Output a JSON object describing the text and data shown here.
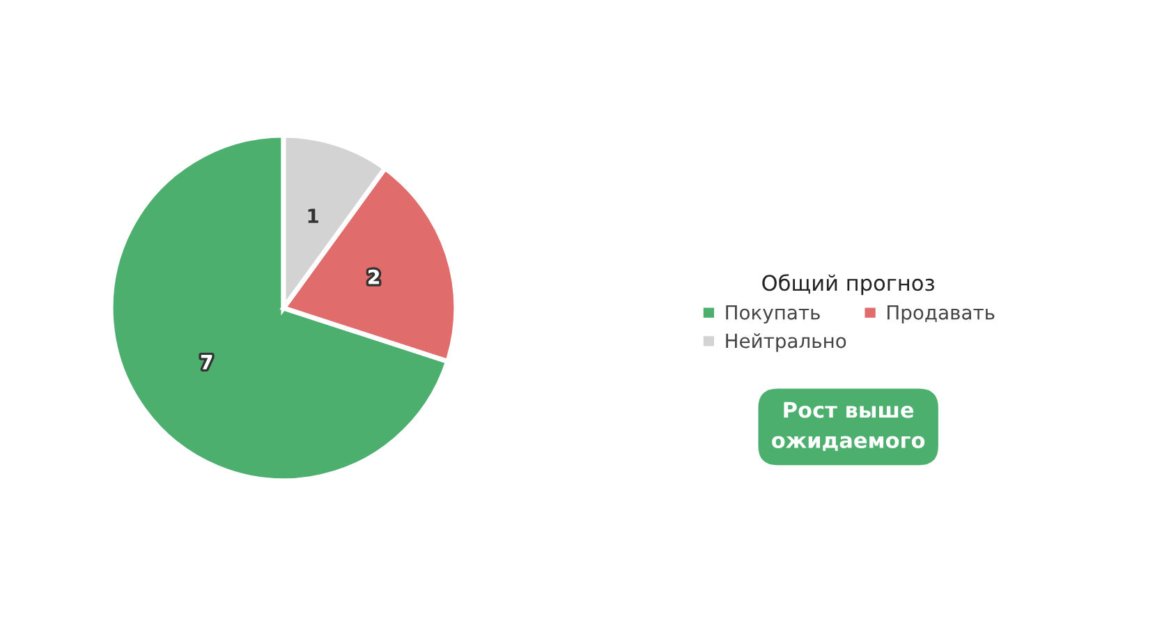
{
  "chart_data": {
    "type": "pie",
    "categories": [
      "Покупать",
      "Продавать",
      "Нейтрально"
    ],
    "values": [
      7,
      2,
      1
    ],
    "colors": [
      "#4caf6e",
      "#e06c6c",
      "#d3d3d3"
    ],
    "legend_title": "Общий прогноз",
    "legend": "right",
    "data_labels": true,
    "annotations": [
      "Рост выше ожидаемого"
    ]
  }
}
